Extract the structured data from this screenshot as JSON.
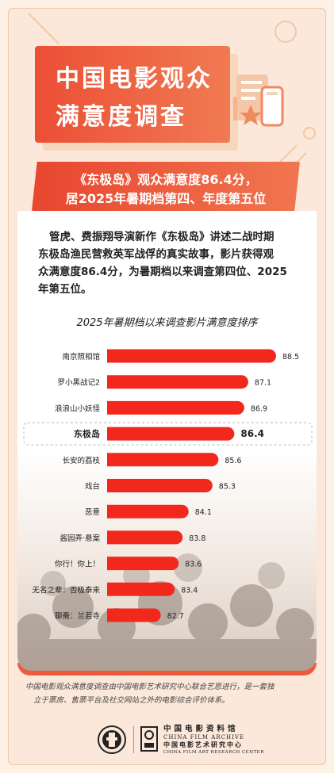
{
  "header": {
    "title_line1": "中国电影观众",
    "title_line2": "满意度调查"
  },
  "banner": {
    "line1": "《东极岛》观众满意度86.4分，",
    "line2": "居2025年暑期档第四、年度第五位"
  },
  "intro": {
    "line1": "管虎、费振翔导演新作《东极岛》讲述二战时期",
    "line2": "东极岛渔民营救英军战俘的真实故事，影片获得观",
    "line3": "众满意度86.4分，为暑期档以来调查第四位、2025",
    "line4": "年第五位。"
  },
  "colors": {
    "accent": "#e8321f",
    "bar": "#f2281c",
    "frame": "#fbe8da",
    "highlight_border": "#b9b9b9"
  },
  "chart_data": {
    "type": "bar",
    "orientation": "horizontal",
    "title": "2025年暑期档以来调查影片满意度排序",
    "categories": [
      "南京照相馆",
      "罗小黑战记2",
      "浪浪山小妖怪",
      "东极岛",
      "长安的荔枝",
      "戏台",
      "恶意",
      "酱园弄·悬案",
      "你行！你上！",
      "无名之辈：否极泰来",
      "聊斋：兰若寺"
    ],
    "value_labels": [
      "88.5",
      "87.1",
      "86.9",
      "86.4",
      "85.6",
      "85.3",
      "84.1",
      "83.8",
      "83.6",
      "83.4",
      "82.7"
    ],
    "values": [
      88.5,
      87.1,
      86.9,
      86.4,
      85.6,
      85.3,
      84.1,
      83.8,
      83.6,
      83.4,
      82.7
    ],
    "highlight": "东极岛",
    "grid": false,
    "legend": "none"
  },
  "footnote": {
    "line1": "中国电影观众满意度调查由中国电影艺术研究中心联合艺恩进行，是一套独",
    "line2": "立于票房、售票平台及社交网站之外的电影综合评价体系。"
  },
  "logo": {
    "cn_name": "中国电影资料馆",
    "en_name": "CHINA FILM ARCHIVE",
    "cn_center": "中国电影艺术研究中心",
    "en_center": "CHINA FILM ART RESEARCH CENTER"
  }
}
